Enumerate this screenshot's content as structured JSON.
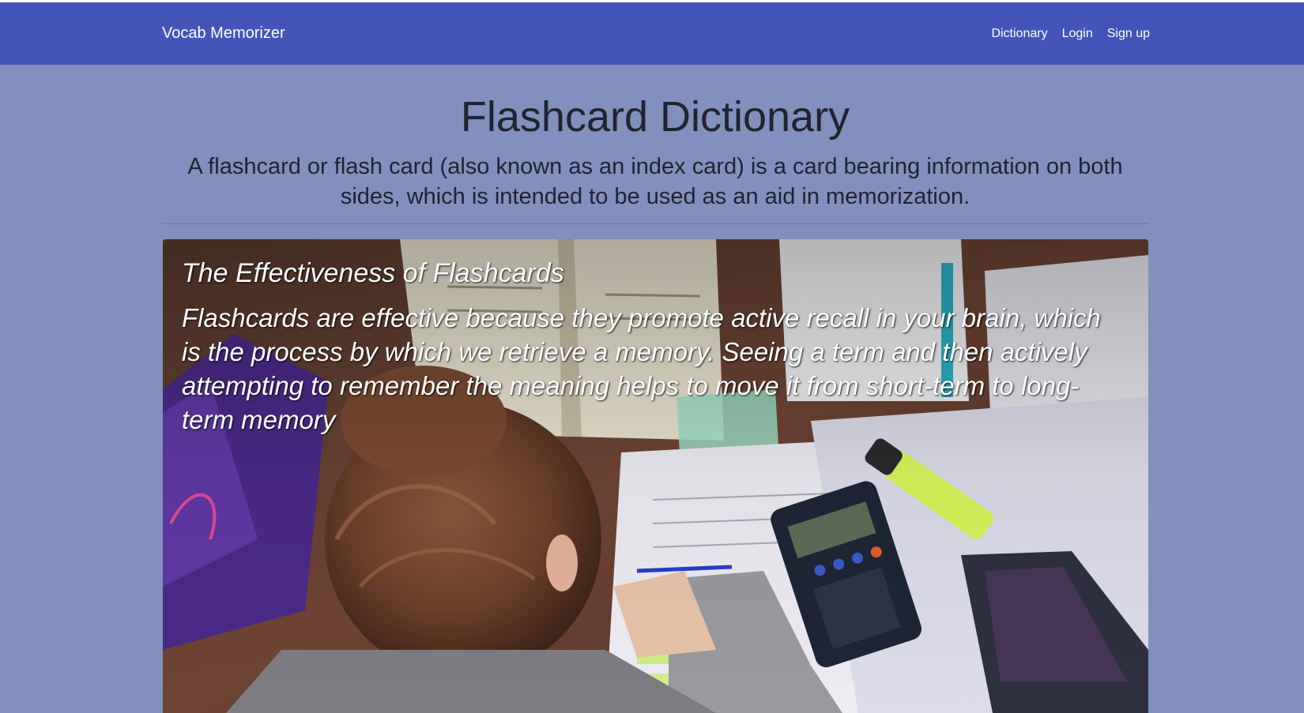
{
  "navbar": {
    "brand": "Vocab Memorizer",
    "links": [
      "Dictionary",
      "Login",
      "Sign up"
    ]
  },
  "hero": {
    "title": "Flashcard Dictionary",
    "lead": "A flashcard or flash card (also known as an index card) is a card bearing information on both sides, which is intended to be used as an aid in memorization."
  },
  "card": {
    "title": "The Effectiveness of Flashcards",
    "text": "Flashcards are effective because they promote active recall in your brain, which is the process by which we retrieve a memory. Seeing a term and then actively attempting to remember the meaning helps to move it from short-term to long-term memory",
    "image": "student-studying-with-notes-and-calculator"
  },
  "colors": {
    "navbar": "#4355b9",
    "page_background": "#8190bc",
    "text": "#20242f"
  }
}
